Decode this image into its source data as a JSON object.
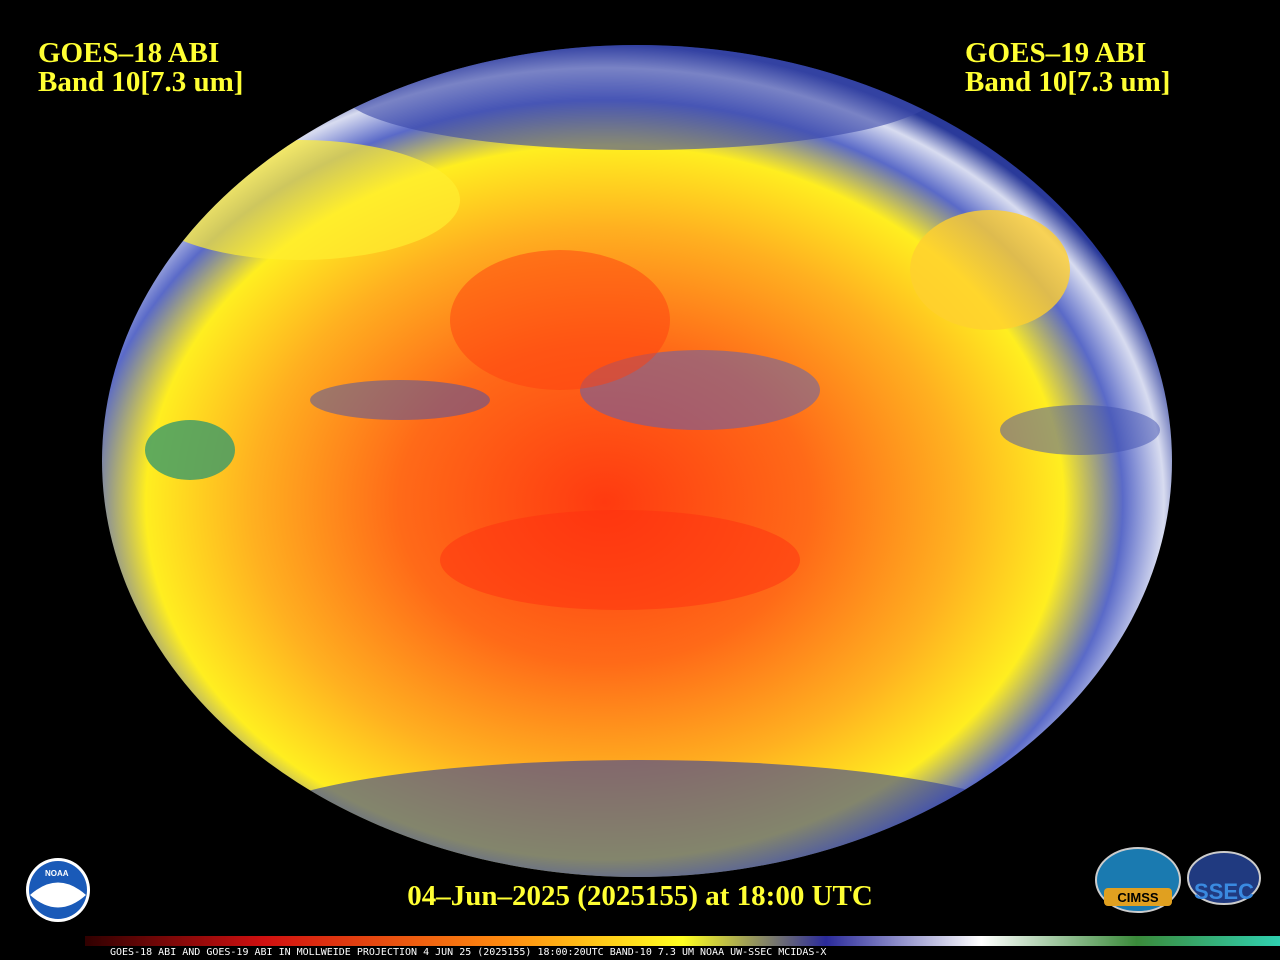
{
  "labels": {
    "left": [
      "GOES–18 ABI",
      "Band 10[7.3 um]"
    ],
    "right": [
      "GOES–19 ABI",
      "Band 10[7.3 um]"
    ]
  },
  "timestamp": "04–Jun–2025 (2025155) at 18:00 UTC",
  "footer": "GOES-18 ABI AND GOES-19 ABI IN MOLLWEIDE PROJECTION 4 JUN 25 (2025155) 18:00:20UTC BAND-10 7.3 UM NOAA UW-SSEC MCIDAS-X",
  "logos": {
    "noaa": "NOAA",
    "cimss": "CIMSS",
    "ssec": "SSEC"
  }
}
